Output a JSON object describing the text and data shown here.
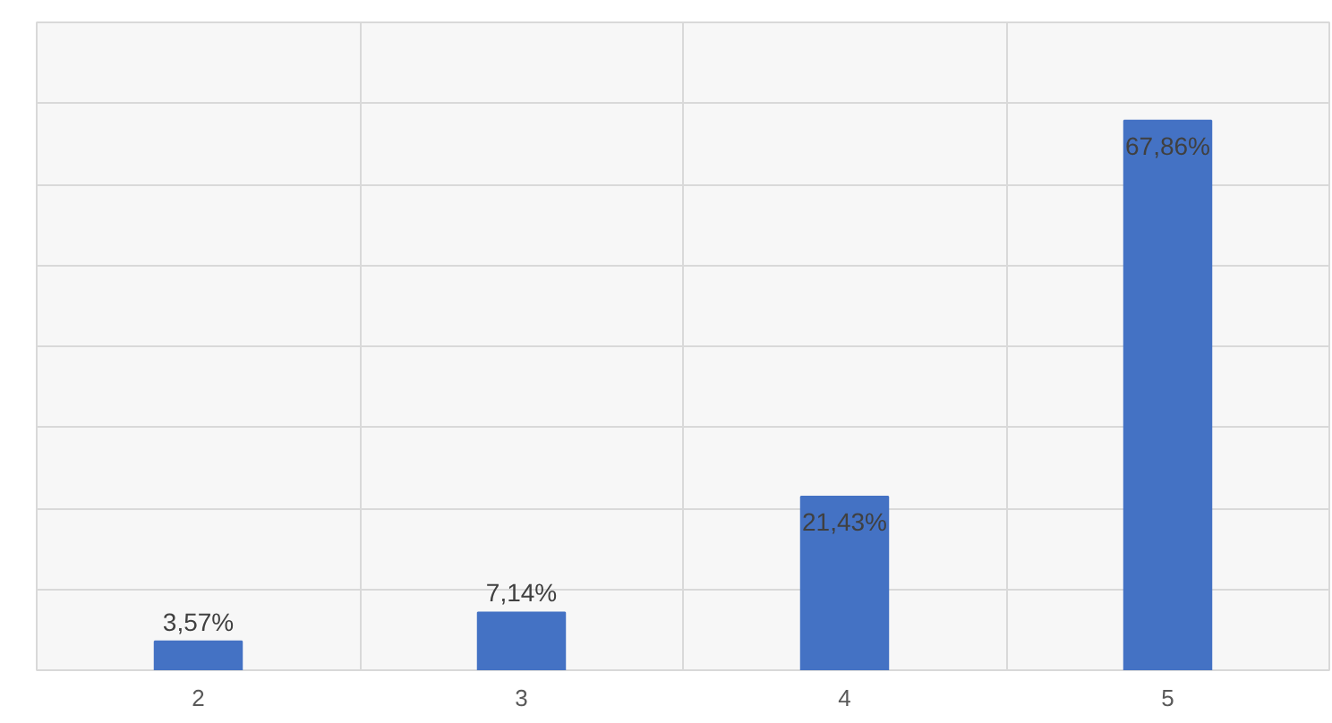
{
  "chart_data": {
    "type": "bar",
    "categories": [
      "2",
      "3",
      "4",
      "5"
    ],
    "values": [
      3.57,
      7.14,
      21.43,
      67.86
    ],
    "value_labels": [
      "3,57%",
      "7,14%",
      "21,43%",
      "67,86%"
    ],
    "color": "#4472c4",
    "ylim": [
      0,
      80
    ],
    "yticks": [
      {
        "value": 0,
        "label": null
      },
      {
        "value": 10,
        "label": null
      },
      {
        "value": 20,
        "label": null
      },
      {
        "value": 30,
        "label": null
      },
      {
        "value": 40,
        "label": null
      },
      {
        "value": 50,
        "label": null
      },
      {
        "value": 60,
        "label": null
      },
      {
        "value": 70,
        "label": null
      },
      {
        "value": 80,
        "label": null
      }
    ],
    "grid": true,
    "tick_labels": "x"
  }
}
